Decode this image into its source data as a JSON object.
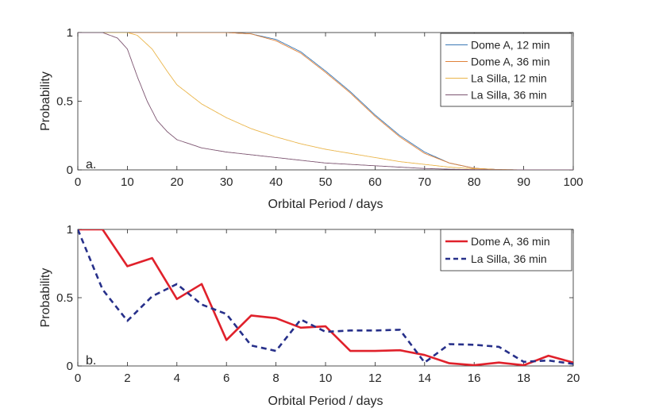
{
  "chart_data": [
    {
      "panel_label": "a.",
      "type": "line",
      "xlabel": "Orbital Period / days",
      "ylabel": "Probability",
      "xlim": [
        0,
        100
      ],
      "ylim": [
        0,
        1
      ],
      "xticks": [
        "0",
        "10",
        "20",
        "30",
        "40",
        "50",
        "60",
        "70",
        "80",
        "90",
        "100"
      ],
      "yticks": [
        "0",
        "0.5",
        "1"
      ],
      "legend_position": "top-right",
      "series": [
        {
          "name": "Dome A, 12 min",
          "color": "#3a78b5",
          "x": [
            0,
            30,
            35,
            40,
            45,
            50,
            55,
            60,
            65,
            70,
            75,
            80,
            85,
            90,
            100
          ],
          "values": [
            1,
            1,
            0.99,
            0.95,
            0.86,
            0.72,
            0.57,
            0.4,
            0.25,
            0.13,
            0.05,
            0.012,
            0.002,
            0,
            0
          ]
        },
        {
          "name": "Dome A, 36 min",
          "color": "#e0823a",
          "x": [
            0,
            30,
            35,
            40,
            45,
            50,
            55,
            60,
            65,
            70,
            75,
            80,
            85,
            90,
            100
          ],
          "values": [
            1,
            1,
            0.99,
            0.94,
            0.85,
            0.71,
            0.56,
            0.39,
            0.24,
            0.12,
            0.05,
            0.012,
            0.002,
            0,
            0
          ]
        },
        {
          "name": "La Silla, 12 min",
          "color": "#eab54a",
          "x": [
            0,
            10,
            12,
            15,
            18,
            20,
            25,
            30,
            35,
            40,
            45,
            50,
            55,
            60,
            65,
            70,
            75,
            80,
            85,
            90,
            100
          ],
          "values": [
            1,
            1,
            0.98,
            0.88,
            0.72,
            0.62,
            0.48,
            0.38,
            0.3,
            0.24,
            0.19,
            0.15,
            0.12,
            0.09,
            0.06,
            0.04,
            0.02,
            0.008,
            0.003,
            0,
            0
          ]
        },
        {
          "name": "La Silla, 36 min",
          "color": "#7d5571",
          "x": [
            0,
            5,
            8,
            10,
            12,
            14,
            16,
            18,
            20,
            25,
            30,
            35,
            40,
            45,
            50,
            55,
            60,
            65,
            70,
            75,
            80,
            90,
            100
          ],
          "values": [
            1,
            1,
            0.96,
            0.88,
            0.68,
            0.5,
            0.36,
            0.28,
            0.22,
            0.16,
            0.13,
            0.11,
            0.09,
            0.07,
            0.05,
            0.04,
            0.03,
            0.02,
            0.01,
            0.005,
            0.002,
            0,
            0
          ]
        }
      ]
    },
    {
      "panel_label": "b.",
      "type": "line",
      "xlabel": "Orbital Period / days",
      "ylabel": "Probability",
      "xlim": [
        0,
        20
      ],
      "ylim": [
        0,
        1
      ],
      "xticks": [
        "0",
        "2",
        "4",
        "6",
        "8",
        "10",
        "12",
        "14",
        "16",
        "18",
        "20"
      ],
      "yticks": [
        "0",
        "0.5",
        "1"
      ],
      "legend_position": "top-right",
      "series": [
        {
          "name": "Dome A, 36 min",
          "color": "#e0212b",
          "style": "solid",
          "x": [
            0,
            1,
            2,
            3,
            4,
            5,
            6,
            7,
            8,
            9,
            10,
            11,
            12,
            13,
            14,
            15,
            16,
            17,
            18,
            19,
            20
          ],
          "values": [
            1,
            1,
            0.73,
            0.79,
            0.49,
            0.6,
            0.19,
            0.37,
            0.35,
            0.28,
            0.29,
            0.11,
            0.11,
            0.115,
            0.08,
            0.02,
            0.005,
            0.025,
            0.005,
            0.075,
            0.025
          ]
        },
        {
          "name": "La Silla, 36 min",
          "color": "#27308a",
          "style": "dashed",
          "x": [
            0,
            1,
            2,
            3,
            4,
            5,
            6,
            7,
            8,
            9,
            10,
            11,
            12,
            13,
            14,
            15,
            16,
            17,
            18,
            19,
            20
          ],
          "values": [
            1,
            0.56,
            0.33,
            0.51,
            0.6,
            0.45,
            0.38,
            0.15,
            0.11,
            0.34,
            0.25,
            0.26,
            0.26,
            0.265,
            0.025,
            0.16,
            0.155,
            0.14,
            0.03,
            0.04,
            0.015
          ]
        }
      ]
    }
  ]
}
